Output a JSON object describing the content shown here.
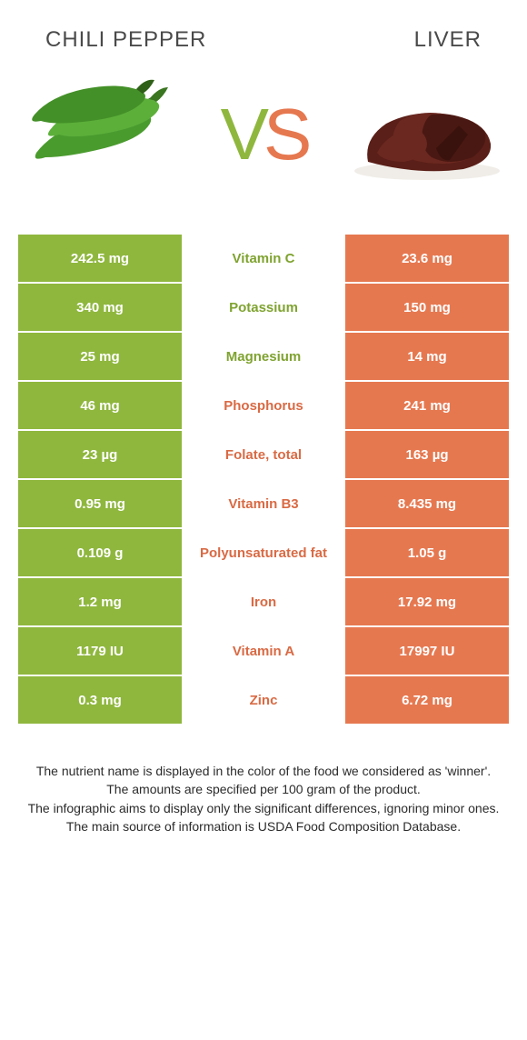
{
  "header": {
    "left": "Chili pepper",
    "right": "Liver"
  },
  "vs": {
    "v": "V",
    "s": "S"
  },
  "colors": {
    "green": "#8fb73e",
    "orange": "#e67850",
    "green_text": "#7fa330",
    "orange_text": "#d96a44"
  },
  "rows": [
    {
      "left": "242.5 mg",
      "mid": "Vitamin C",
      "right": "23.6 mg",
      "winner": "green"
    },
    {
      "left": "340 mg",
      "mid": "Potassium",
      "right": "150 mg",
      "winner": "green"
    },
    {
      "left": "25 mg",
      "mid": "Magnesium",
      "right": "14 mg",
      "winner": "green"
    },
    {
      "left": "46 mg",
      "mid": "Phosphorus",
      "right": "241 mg",
      "winner": "orange"
    },
    {
      "left": "23 µg",
      "mid": "Folate, total",
      "right": "163 µg",
      "winner": "orange"
    },
    {
      "left": "0.95 mg",
      "mid": "Vitamin B3",
      "right": "8.435 mg",
      "winner": "orange"
    },
    {
      "left": "0.109 g",
      "mid": "Polyunsaturated fat",
      "right": "1.05 g",
      "winner": "orange"
    },
    {
      "left": "1.2 mg",
      "mid": "Iron",
      "right": "17.92 mg",
      "winner": "orange"
    },
    {
      "left": "1179 IU",
      "mid": "Vitamin A",
      "right": "17997 IU",
      "winner": "orange"
    },
    {
      "left": "0.3 mg",
      "mid": "Zinc",
      "right": "6.72 mg",
      "winner": "orange"
    }
  ],
  "footer": [
    "The nutrient name is displayed in the color of the food we considered as 'winner'.",
    "The amounts are specified per 100 gram of the product.",
    "The infographic aims to display only the significant differences, ignoring minor ones.",
    "The main source of information is USDA Food Composition Database."
  ]
}
